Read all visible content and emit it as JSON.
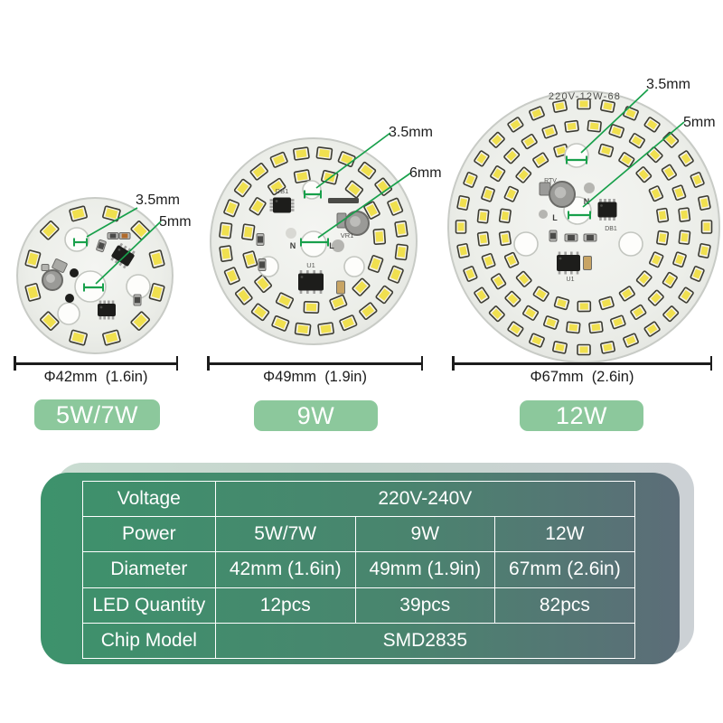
{
  "figures": [
    {
      "id": "module-5w7w",
      "badge": "5W/7W",
      "diameter_label": "Φ42mm  (1.6in)",
      "callouts": [
        "3.5mm",
        "5mm"
      ],
      "led_count": 12,
      "ring_counts": [
        12
      ]
    },
    {
      "id": "module-9w",
      "badge": "9W",
      "diameter_label": "Φ49mm  (1.9in)",
      "callouts": [
        "3.5mm",
        "6mm"
      ],
      "led_count": 39,
      "ring_counts": [
        24,
        15
      ],
      "labels": {
        "db1": "DB1",
        "vr1": "VR1",
        "u1": "U1",
        "n": "N",
        "l": "L"
      }
    },
    {
      "id": "module-12w",
      "badge": "12W",
      "diameter_label": "Φ67mm  (2.6in)",
      "callouts": [
        "3.5mm",
        "5mm"
      ],
      "led_count": 82,
      "ring_counts": [
        32,
        28,
        22
      ],
      "print_label": "220V-12W-68",
      "labels": {
        "rtv": "RTV",
        "db1": "DB1",
        "u1": "U1",
        "n": "N",
        "l": "L"
      }
    }
  ],
  "spec_table": {
    "rows": [
      {
        "label": "Voltage",
        "values": [
          "220V-240V"
        ]
      },
      {
        "label": "Power",
        "values": [
          "5W/7W",
          "9W",
          "12W"
        ]
      },
      {
        "label": "Diameter",
        "values": [
          "42mm (1.6in)",
          "49mm (1.9in)",
          "67mm (2.6in)"
        ]
      },
      {
        "label": "LED Quantity",
        "values": [
          "12pcs",
          "39pcs",
          "82pcs"
        ]
      },
      {
        "label": "Chip Model",
        "values": [
          "SMD2835"
        ]
      }
    ]
  },
  "colors": {
    "badge_green": "#8cc89c",
    "callout_green": "#18a04b",
    "card_green": "#3d926c",
    "card_slate": "#5c6d78",
    "card_back_mint": "#c9dcd1",
    "card_back_gray": "#ccd1d5",
    "led_yellow": "#f0e04f",
    "dimension_line": "#1c1c1c"
  }
}
